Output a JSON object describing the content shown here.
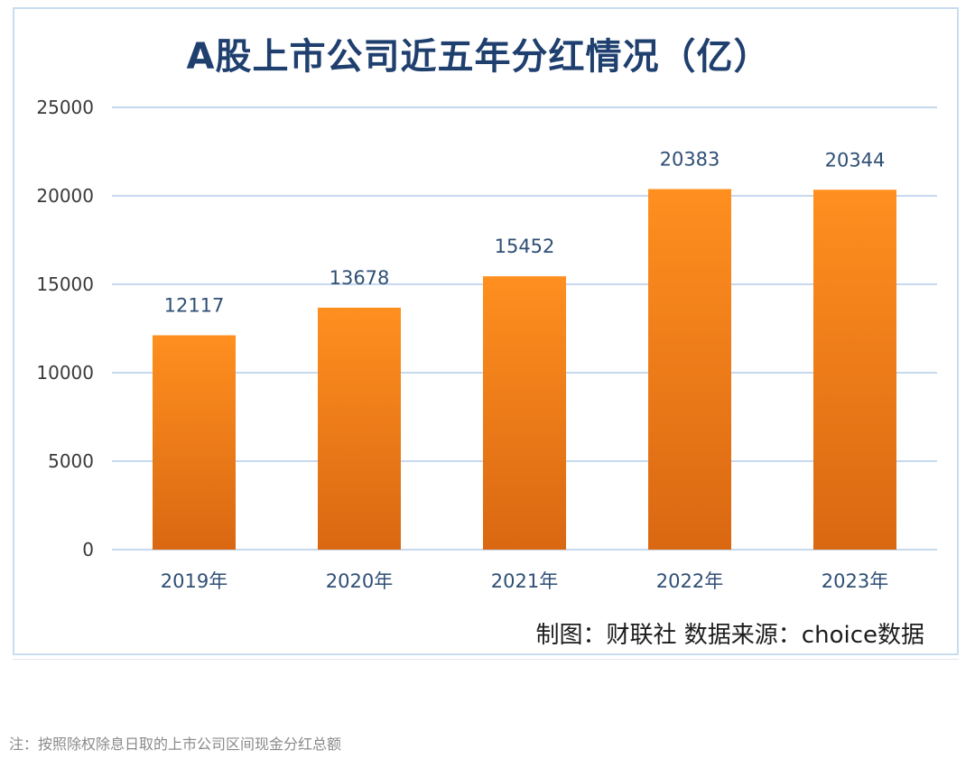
{
  "chart_data": {
    "type": "bar",
    "title": "A股上市公司近五年分红情况（亿）",
    "categories": [
      "2019年",
      "2020年",
      "2021年",
      "2022年",
      "2023年"
    ],
    "values": [
      12117,
      13678,
      15452,
      20383,
      20344
    ],
    "ylim": [
      0,
      25000
    ],
    "yticks": [
      0,
      5000,
      10000,
      15000,
      20000,
      25000
    ],
    "grid": true,
    "legend": "none",
    "bar_color_top": "#ff8f1f",
    "bar_color_bottom": "#d96812"
  },
  "source_text": "制图：财联社 数据来源：choice数据",
  "note_text": "注：按照除权除息日取的上市公司区间现金分红总额",
  "colors": {
    "title": "#1f3f6e",
    "grid": "#c6d9ee",
    "axis_text": "#3a3a3a",
    "label_text": "#2f4f75"
  }
}
